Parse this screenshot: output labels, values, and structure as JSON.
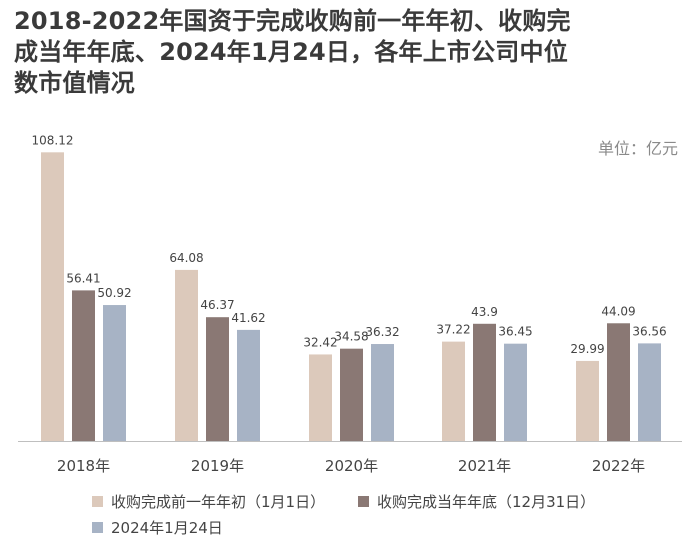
{
  "colors": {
    "series0": "#dcc9bb",
    "series1": "#8a7874",
    "series2": "#a7b3c5",
    "axis": "#bfbfbf",
    "text": "#444444"
  },
  "chart_data": {
    "type": "bar",
    "title": "2018-2022年国资于完成收购前一年年初、收购完成当年年底、2024年1月24日，各年上市公司中位数市值情况",
    "unit_label": "单位：亿元",
    "categories": [
      "2018年",
      "2019年",
      "2020年",
      "2021年",
      "2022年"
    ],
    "series": [
      {
        "name": "收购完成前一年年初（1月1日）",
        "values": [
          108.12,
          64.08,
          32.42,
          37.22,
          29.99
        ]
      },
      {
        "name": "收购完成当年年底（12月31日）",
        "values": [
          56.41,
          46.37,
          34.58,
          43.9,
          44.09
        ]
      },
      {
        "name": "2024年1月24日",
        "values": [
          50.92,
          41.62,
          36.32,
          36.45,
          36.56
        ]
      }
    ],
    "ylim": [
      0,
      110
    ],
    "grid": false,
    "legend_position": "bottom"
  }
}
